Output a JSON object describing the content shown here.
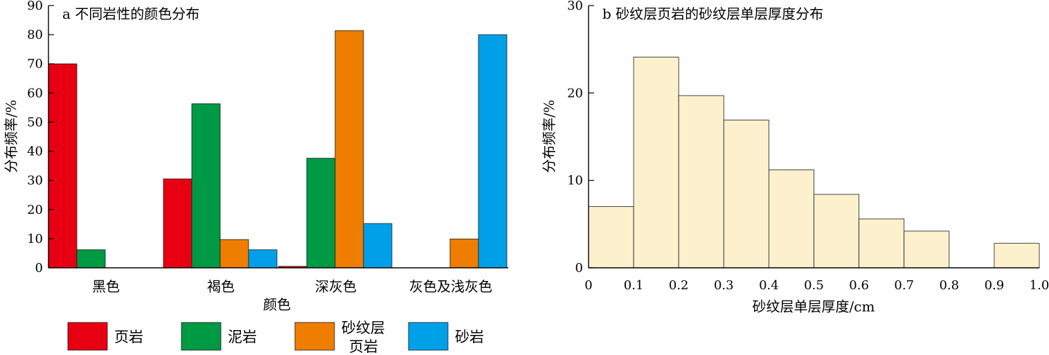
{
  "chart_data": [
    {
      "type": "bar",
      "title": "a 不同岩性的颜色分布",
      "xlabel": "颜色",
      "ylabel": "分布频率/%",
      "ylim": [
        0,
        90
      ],
      "yticks": [
        0,
        10,
        20,
        30,
        40,
        50,
        60,
        70,
        80,
        90
      ],
      "categories": [
        "黑色",
        "褐色",
        "深灰色",
        "灰色及浅灰色"
      ],
      "series": [
        {
          "name": "页岩",
          "color": "#e60012",
          "values": [
            70,
            30.5,
            0.5,
            0
          ]
        },
        {
          "name": "泥岩",
          "color": "#009944",
          "values": [
            6.2,
            56.3,
            37.6,
            0
          ]
        },
        {
          "name": "砂纹层页岩",
          "color": "#ee7d00",
          "values": [
            0,
            9.7,
            81.4,
            9.9
          ]
        },
        {
          "name": "砂岩",
          "color": "#00a0e9",
          "values": [
            0,
            6.2,
            15.2,
            80
          ]
        }
      ],
      "legend_position": "bottom"
    },
    {
      "type": "bar",
      "title": "b 砂纹层页岩的砂纹层单层厚度分布",
      "xlabel": "砂纹层单层厚度/cm",
      "ylabel": "分布频率/%",
      "ylim": [
        0,
        30
      ],
      "yticks": [
        0,
        10,
        20,
        30
      ],
      "xlim": [
        0,
        1.0
      ],
      "xticks": [
        "0",
        "0.1",
        "0.2",
        "0.3",
        "0.4",
        "0.5",
        "0.6",
        "0.7",
        "0.8",
        "0.9",
        "1.0"
      ],
      "bins": [
        {
          "from": 0.0,
          "to": 0.1,
          "value": 7.0
        },
        {
          "from": 0.1,
          "to": 0.2,
          "value": 24.1
        },
        {
          "from": 0.2,
          "to": 0.3,
          "value": 19.7
        },
        {
          "from": 0.3,
          "to": 0.4,
          "value": 16.9
        },
        {
          "from": 0.4,
          "to": 0.5,
          "value": 11.2
        },
        {
          "from": 0.5,
          "to": 0.6,
          "value": 8.4
        },
        {
          "from": 0.6,
          "to": 0.7,
          "value": 5.6
        },
        {
          "from": 0.7,
          "to": 0.8,
          "value": 4.2
        },
        {
          "from": 0.8,
          "to": 0.9,
          "value": 0
        },
        {
          "from": 0.9,
          "to": 1.0,
          "value": 2.8
        }
      ],
      "bar_color": "#fdf0cd"
    }
  ],
  "legend": {
    "items": [
      {
        "label": "页岩",
        "color": "#e60012"
      },
      {
        "label": "泥岩",
        "color": "#009944"
      },
      {
        "label_line1": "砂纹层",
        "label_line2": "页岩",
        "color": "#ee7d00"
      },
      {
        "label": "砂岩",
        "color": "#00a0e9"
      }
    ]
  }
}
